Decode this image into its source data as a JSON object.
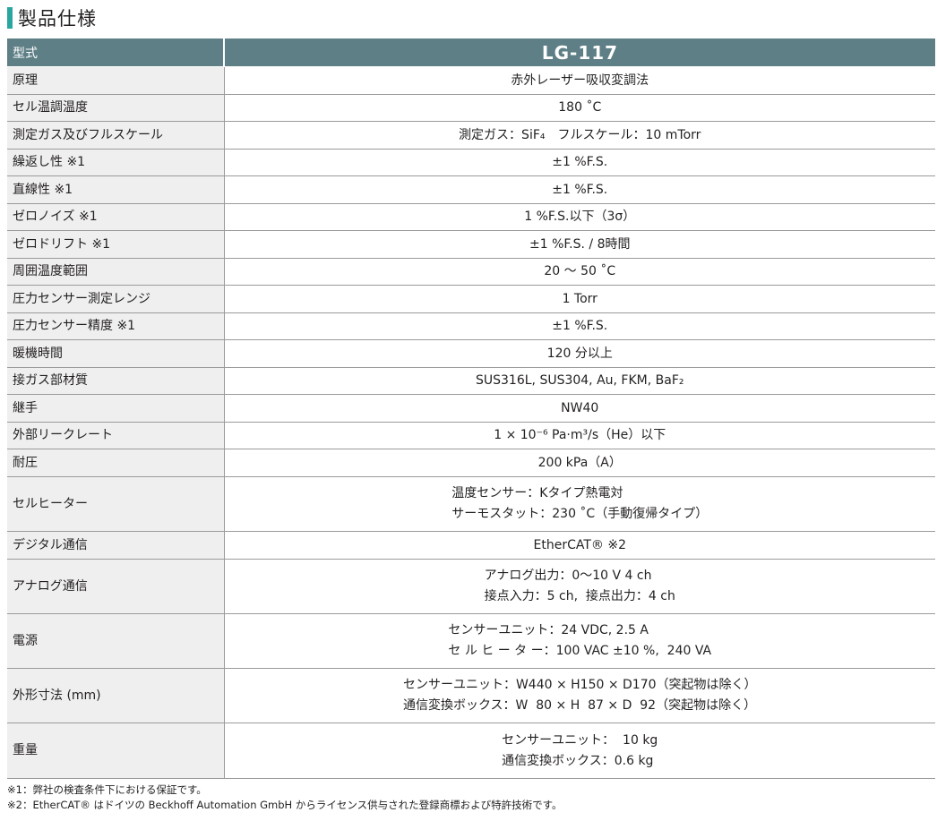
{
  "title": "製品仕様",
  "header": {
    "label": "型式",
    "model": "LG-117"
  },
  "rows": [
    {
      "k": "原理",
      "v": [
        "赤外レーザー吸収変調法"
      ],
      "h": 31
    },
    {
      "k": "セル温調温度",
      "v": [
        "180 ˚C"
      ],
      "h": 30
    },
    {
      "k": "測定ガス及びフルスケール",
      "v": [
        "測定ガス：SiF₄　フルスケール：10 mTorr"
      ],
      "h": 31
    },
    {
      "k": "繰返し性 ※1",
      "v": [
        "±1 %F.S."
      ],
      "h": 30
    },
    {
      "k": "直線性 ※1",
      "v": [
        "±1 %F.S."
      ],
      "h": 31
    },
    {
      "k": "ゼロノイズ ※1",
      "v": [
        "1 %F.S.以下（3σ）"
      ],
      "h": 30
    },
    {
      "k": "ゼロドリフト ※1",
      "v": [
        "±1 %F.S. / 8時間"
      ],
      "h": 31
    },
    {
      "k": "周囲温度範囲",
      "v": [
        "20 ～ 50 ˚C"
      ],
      "h": 30
    },
    {
      "k": "圧力センサー測定レンジ",
      "v": [
        "1 Torr"
      ],
      "h": 31
    },
    {
      "k": "圧力センサー精度 ※1",
      "v": [
        "±1 %F.S."
      ],
      "h": 30
    },
    {
      "k": "暖機時間",
      "v": [
        "120 分以上"
      ],
      "h": 31
    },
    {
      "k": "接ガス部材質",
      "v": [
        "SUS316L, SUS304, Au, FKM, BaF₂"
      ],
      "h": 30
    },
    {
      "k": "継手",
      "v": [
        "NW40"
      ],
      "h": 31
    },
    {
      "k": "外部リークレート",
      "v": [
        "1 × 10⁻⁶ Pa·m³/s（He）以下"
      ],
      "h": 30
    },
    {
      "k": "耐圧",
      "v": [
        "200 kPa（A）"
      ],
      "h": 31
    },
    {
      "k": "セルヒーター",
      "v": [
        "温度センサー：Kタイプ熱電対",
        "サーモスタット：230 ˚C（手動復帰タイプ）"
      ],
      "h": 61
    },
    {
      "k": "デジタル通信",
      "v": [
        "EtherCAT® ※2"
      ],
      "h": 31
    },
    {
      "k": "アナログ通信",
      "v": [
        "アナログ出力：0～10 V 4 ch",
        "接点入力：5 ch,  接点出力：4 ch"
      ],
      "h": 61
    },
    {
      "k": "電源",
      "v": [
        "センサーユニット：24 VDC, 2.5 A",
        "セ ル ヒ ー タ ー：100 VAC ±10 %,  240 VA"
      ],
      "h": 61
    },
    {
      "k": "外形寸法 (mm)",
      "v": [
        "センサーユニット：W440 × H150 × D170（突起物は除く）",
        "通信変換ボックス：W  80 × H  87 × D  92（突起物は除く）"
      ],
      "h": 61
    },
    {
      "k": "重量",
      "v": [
        "センサーユニット：  10 kg",
        "通信変換ボックス：0.6 kg"
      ],
      "h": 62
    }
  ],
  "notes": [
    "※1：弊社の検査条件下における保証です。",
    "※2：EtherCAT® はドイツの Beckhoff Automation GmbH からライセンス供与された登録商標および特許技術です。"
  ]
}
